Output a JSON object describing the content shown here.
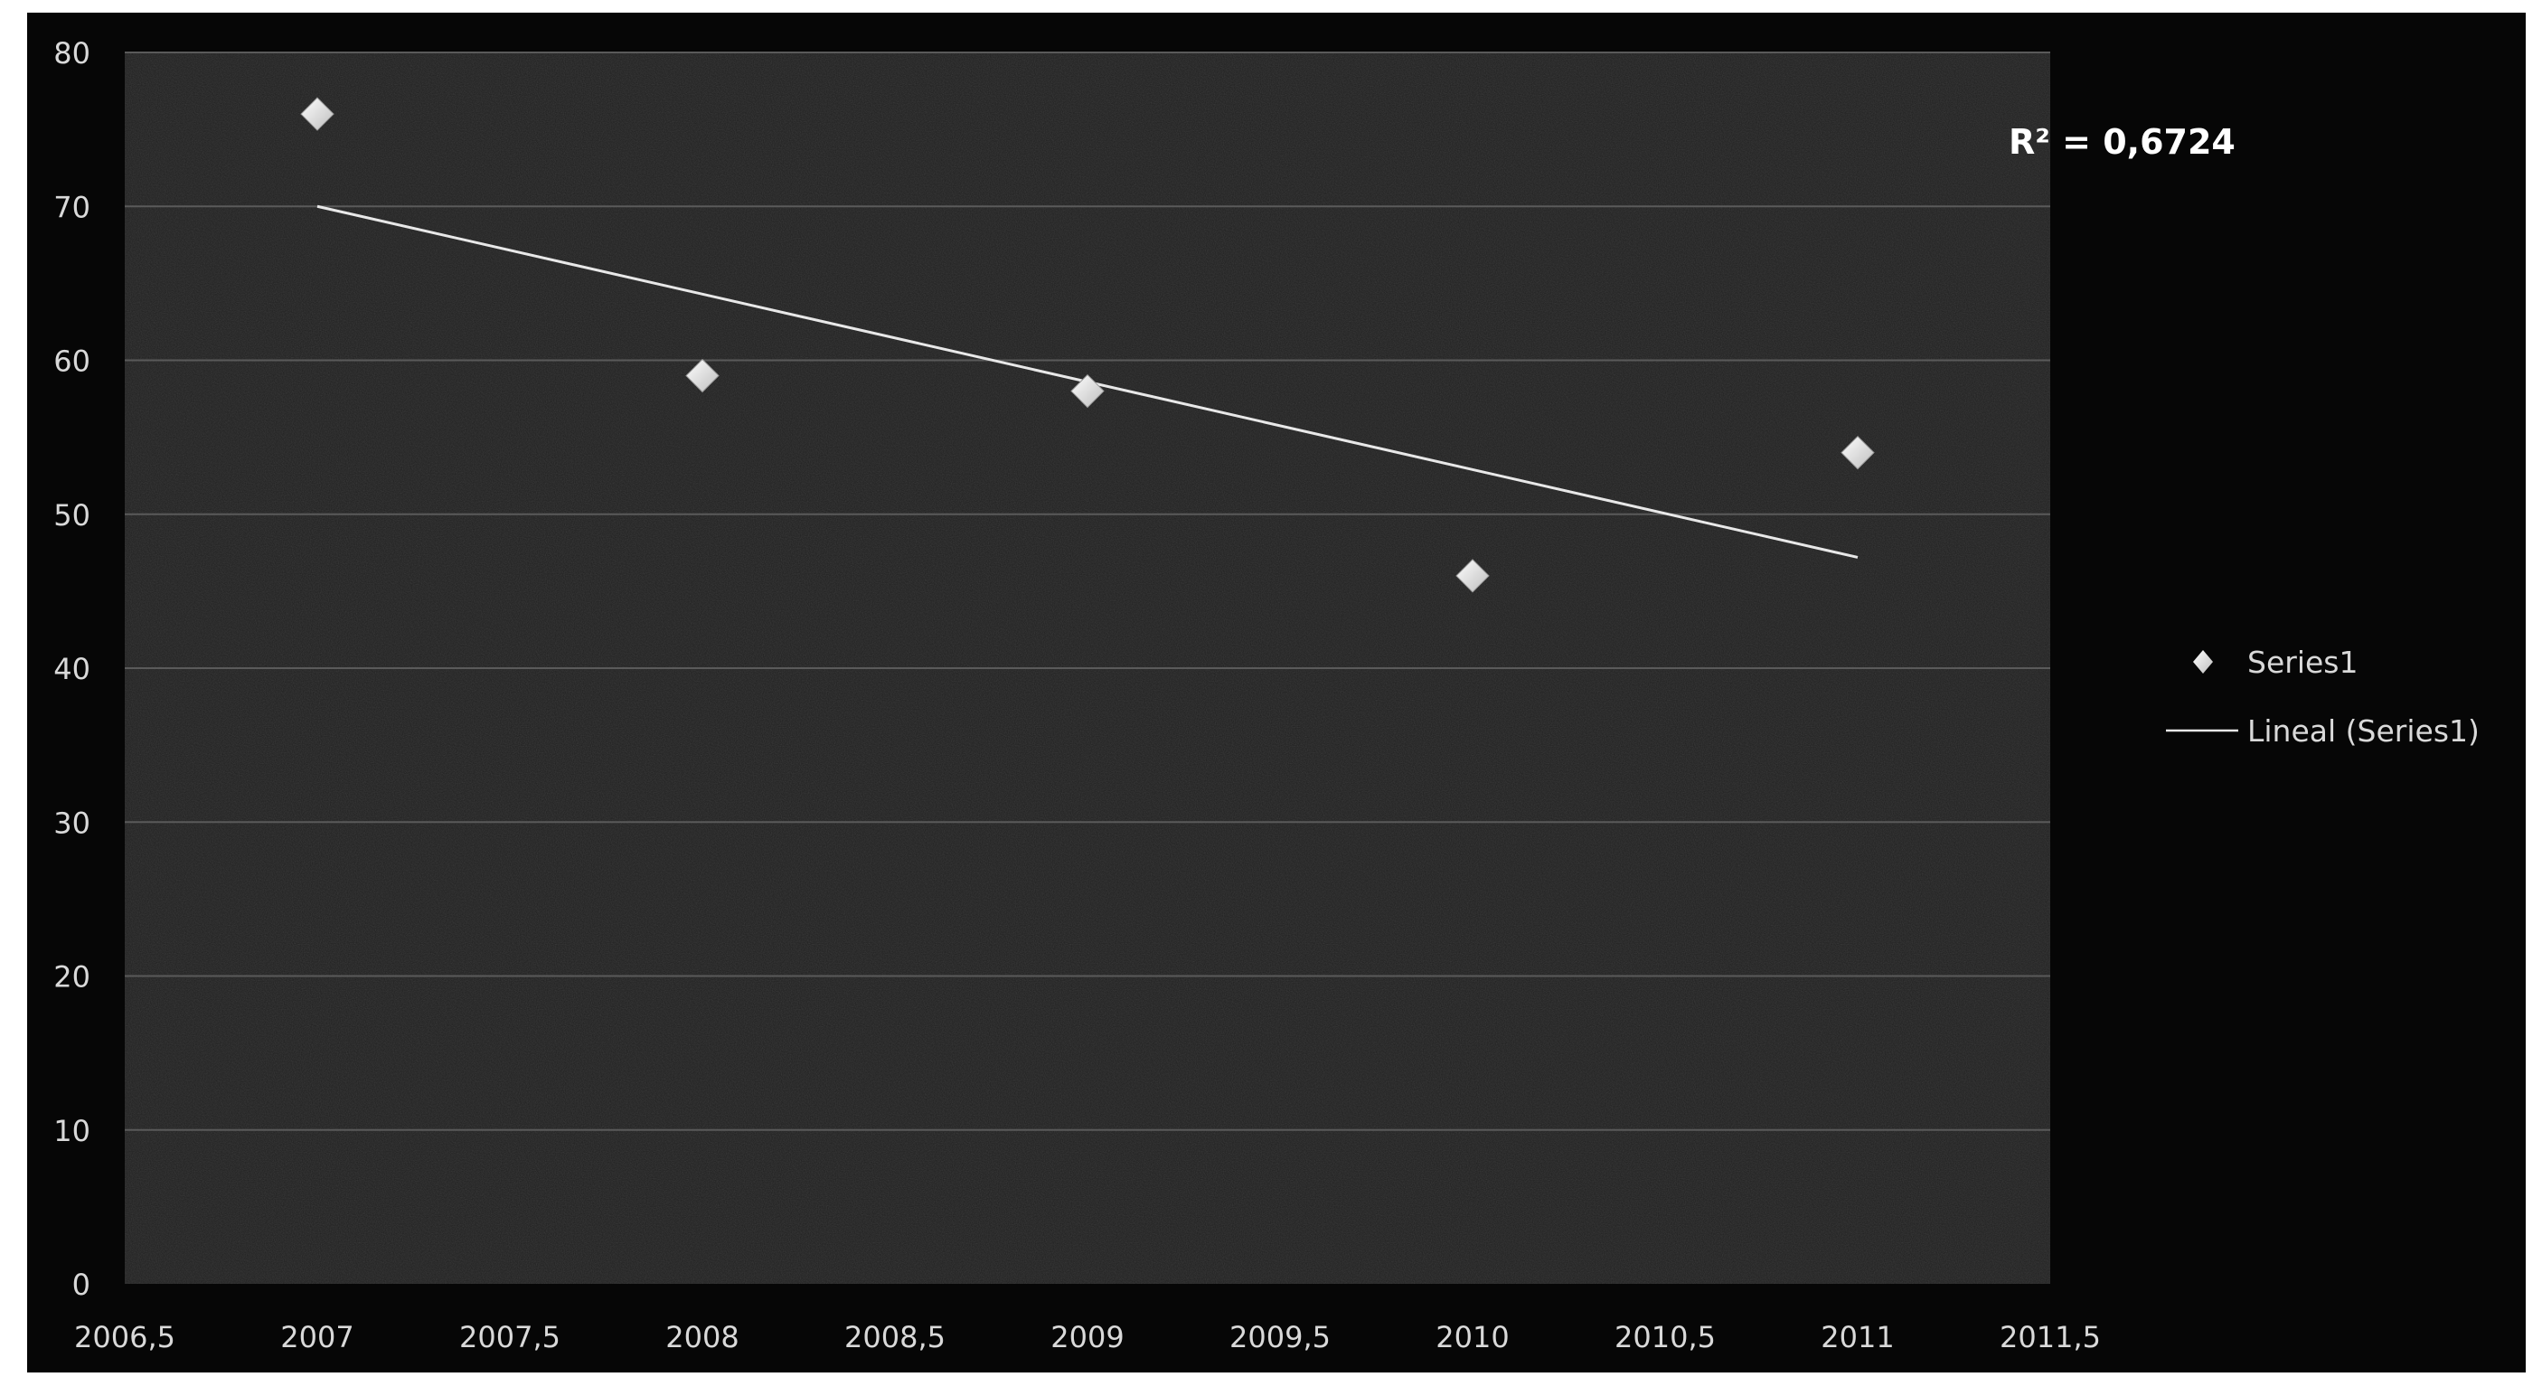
{
  "chart_data": {
    "type": "scatter",
    "title": "",
    "xlabel": "",
    "ylabel": "",
    "xlim": [
      2006.5,
      2011.5
    ],
    "ylim": [
      0,
      80
    ],
    "x_ticks": [
      "2006,5",
      "2007",
      "2007,5",
      "2008",
      "2008,5",
      "2009",
      "2009,5",
      "2010",
      "2010,5",
      "2011",
      "2011,5"
    ],
    "x_tick_values": [
      2006.5,
      2007,
      2007.5,
      2008,
      2008.5,
      2009,
      2009.5,
      2010,
      2010.5,
      2011,
      2011.5
    ],
    "y_ticks": [
      "0",
      "10",
      "20",
      "30",
      "40",
      "50",
      "60",
      "70",
      "80"
    ],
    "y_tick_values": [
      0,
      10,
      20,
      30,
      40,
      50,
      60,
      70,
      80
    ],
    "grid": "horizontal",
    "series": [
      {
        "name": "Series1",
        "marker": "diamond",
        "x": [
          2007,
          2008,
          2009,
          2010,
          2011
        ],
        "y": [
          76,
          59,
          58,
          46,
          54
        ]
      }
    ],
    "trendline": {
      "name": "Lineal (Series1)",
      "type": "linear",
      "x": [
        2007,
        2011
      ],
      "y": [
        70,
        47.2
      ],
      "r_squared_label": "R² = 0,6724"
    },
    "legend": {
      "position": "right",
      "entries": [
        "Series1",
        "Lineal (Series1)"
      ]
    },
    "colors": {
      "page_background": "#ffffff",
      "chart_background": "#060606",
      "plot_background": "#1f1f1f",
      "gridline": "#5a5a5a",
      "marker": "#f2f2f2",
      "trendline": "#e8e8e8",
      "text": "#d9d9d9"
    }
  }
}
